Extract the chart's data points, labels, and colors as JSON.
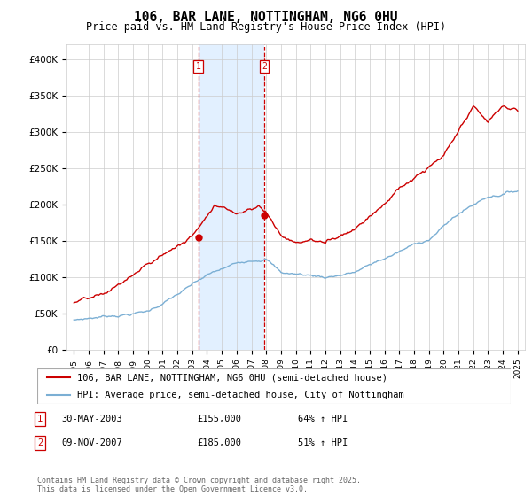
{
  "title": "106, BAR LANE, NOTTINGHAM, NG6 0HU",
  "subtitle": "Price paid vs. HM Land Registry's House Price Index (HPI)",
  "ylabel_ticks": [
    "£0",
    "£50K",
    "£100K",
    "£150K",
    "£200K",
    "£250K",
    "£300K",
    "£350K",
    "£400K"
  ],
  "ylim": [
    0,
    420000
  ],
  "xlim_start": 1994.5,
  "xlim_end": 2025.5,
  "sale1_x": 2003.41,
  "sale1_y": 155000,
  "sale2_x": 2007.86,
  "sale2_y": 185000,
  "shading_x1": 2003.41,
  "shading_x2": 2007.86,
  "legend_label_red": "106, BAR LANE, NOTTINGHAM, NG6 0HU (semi-detached house)",
  "legend_label_blue": "HPI: Average price, semi-detached house, City of Nottingham",
  "footnote": "Contains HM Land Registry data © Crown copyright and database right 2025.\nThis data is licensed under the Open Government Licence v3.0.",
  "red_color": "#cc0000",
  "blue_color": "#7bafd4",
  "shade_color": "#ddeeff",
  "grid_color": "#cccccc",
  "background_color": "#ffffff",
  "table_row1": [
    "1",
    "30-MAY-2003",
    "£155,000",
    "64% ↑ HPI"
  ],
  "table_row2": [
    "2",
    "09-NOV-2007",
    "£185,000",
    "51% ↑ HPI"
  ]
}
